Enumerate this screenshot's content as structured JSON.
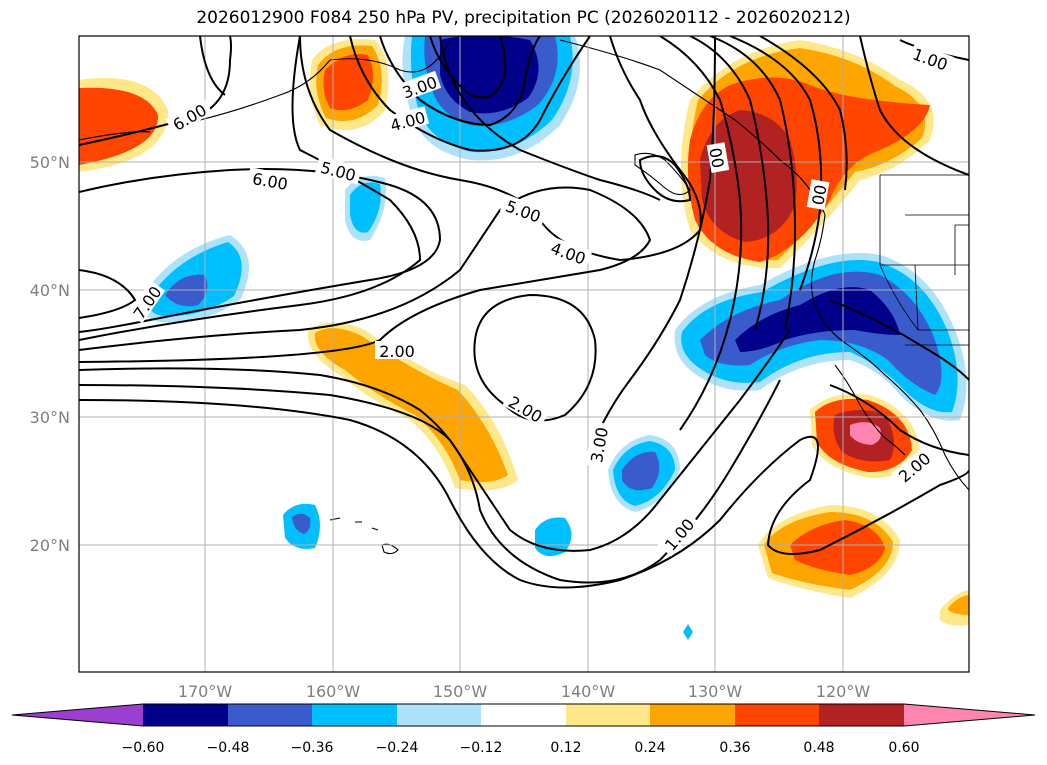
{
  "title": "2026012900 F084 250 hPa PV, precipitation PC (2026020112 - 2026020212)",
  "axes": {
    "lat_ticks": [
      "50°N",
      "40°N",
      "30°N",
      "20°N"
    ],
    "lon_ticks": [
      "170°W",
      "160°W",
      "150°W",
      "140°W",
      "130°W",
      "120°W"
    ]
  },
  "contour_labels": [
    "1.00",
    "6.00",
    "3.00",
    "4.00",
    "5.00",
    "6.00",
    "5.00",
    "4.00",
    "7.00",
    "2.00",
    "2.00",
    "3.00",
    "1.00",
    "2.00",
    "00",
    "00"
  ],
  "colorbar": {
    "ticks": [
      "−0.60",
      "−0.48",
      "−0.36",
      "−0.24",
      "−0.12",
      "0.12",
      "0.24",
      "0.36",
      "0.48",
      "0.60"
    ],
    "colors": [
      "#9a3fd0",
      "#00008b",
      "#3a5bcc",
      "#00bfff",
      "#aee2fa",
      "#ffffff",
      "#ffe88a",
      "#ffa500",
      "#ff4500",
      "#b22222",
      "#ff85b0"
    ]
  }
}
